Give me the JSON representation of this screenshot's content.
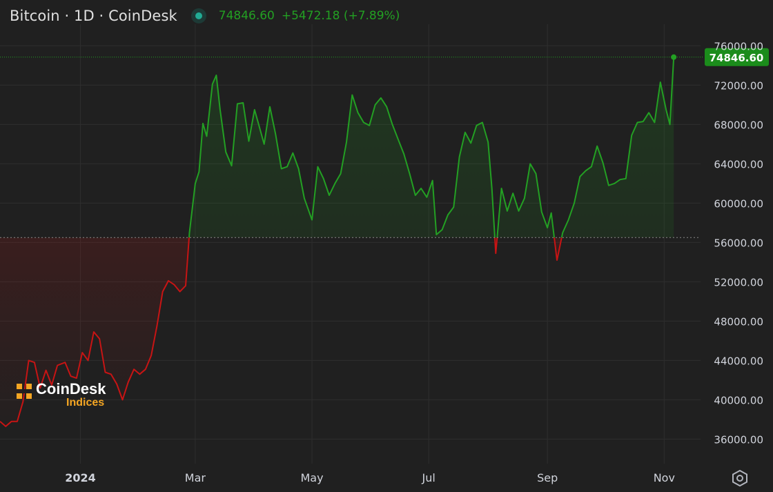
{
  "header": {
    "title": "Bitcoin · 1D · CoinDesk",
    "price": "74846.60",
    "change": "+5472.18 (+7.89%)"
  },
  "logo": {
    "name": "CoinDesk",
    "sub": "Indices"
  },
  "icons": {
    "status": "market-status-dot",
    "settings": "gear-icon",
    "logo": "coindesk-logo-icon"
  },
  "colors": {
    "background": "#202020",
    "grid": "#2e2e2e",
    "up": "#23a023",
    "down": "#c81414",
    "axis_text": "#d1d4dc",
    "last_price_label": "#1b8c1b"
  },
  "chart_data": {
    "type": "area",
    "title": "Bitcoin · 1D · CoinDesk",
    "baseline": 56500,
    "last_price": 74846.6,
    "last_price_label": "74846.60",
    "ylim": [
      33500,
      77500
    ],
    "xlim": [
      "2023-11-20",
      "2024-11-20"
    ],
    "grid": true,
    "yticks": [
      36000,
      40000,
      44000,
      48000,
      52000,
      56000,
      60000,
      64000,
      68000,
      72000,
      76000
    ],
    "ytick_labels": [
      "36000.00",
      "40000.00",
      "44000.00",
      "48000.00",
      "52000.00",
      "56000.00",
      "60000.00",
      "64000.00",
      "68000.00",
      "72000.00",
      "76000.00"
    ],
    "xticks": [
      {
        "date": "2024-01-01",
        "label": "2024",
        "bold": true
      },
      {
        "date": "2024-03-01",
        "label": "Mar"
      },
      {
        "date": "2024-05-01",
        "label": "May"
      },
      {
        "date": "2024-07-01",
        "label": "Jul"
      },
      {
        "date": "2024-09-01",
        "label": "Sep"
      },
      {
        "date": "2024-11-01",
        "label": "Nov"
      }
    ],
    "series": [
      {
        "x": [
          "2023-11-20",
          "2023-11-23",
          "2023-11-26",
          "2023-11-29",
          "2023-12-02",
          "2023-12-05",
          "2023-12-08",
          "2023-12-11",
          "2023-12-14",
          "2023-12-17",
          "2023-12-20",
          "2023-12-24",
          "2023-12-27",
          "2023-12-30",
          "2024-01-02",
          "2024-01-05",
          "2024-01-08",
          "2024-01-11",
          "2024-01-14",
          "2024-01-17",
          "2024-01-20",
          "2024-01-23",
          "2024-01-26",
          "2024-01-29",
          "2024-02-01",
          "2024-02-04",
          "2024-02-07",
          "2024-02-10",
          "2024-02-13",
          "2024-02-16",
          "2024-02-19",
          "2024-02-22",
          "2024-02-25",
          "2024-02-27",
          "2024-03-01",
          "2024-03-03",
          "2024-03-05",
          "2024-03-07",
          "2024-03-10",
          "2024-03-12",
          "2024-03-14",
          "2024-03-17",
          "2024-03-20",
          "2024-03-23",
          "2024-03-26",
          "2024-03-29",
          "2024-04-01",
          "2024-04-03",
          "2024-04-06",
          "2024-04-09",
          "2024-04-12",
          "2024-04-15",
          "2024-04-18",
          "2024-04-21",
          "2024-04-24",
          "2024-04-27",
          "2024-05-01",
          "2024-05-04",
          "2024-05-07",
          "2024-05-10",
          "2024-05-13",
          "2024-05-16",
          "2024-05-19",
          "2024-05-22",
          "2024-05-25",
          "2024-05-28",
          "2024-05-31",
          "2024-06-03",
          "2024-06-06",
          "2024-06-09",
          "2024-06-12",
          "2024-06-15",
          "2024-06-18",
          "2024-06-21",
          "2024-06-24",
          "2024-06-27",
          "2024-06-30",
          "2024-07-03",
          "2024-07-05",
          "2024-07-08",
          "2024-07-11",
          "2024-07-14",
          "2024-07-17",
          "2024-07-20",
          "2024-07-23",
          "2024-07-26",
          "2024-07-29",
          "2024-08-01",
          "2024-08-03",
          "2024-08-05",
          "2024-08-08",
          "2024-08-11",
          "2024-08-14",
          "2024-08-17",
          "2024-08-20",
          "2024-08-23",
          "2024-08-26",
          "2024-08-29",
          "2024-09-01",
          "2024-09-03",
          "2024-09-06",
          "2024-09-09",
          "2024-09-12",
          "2024-09-15",
          "2024-09-18",
          "2024-09-21",
          "2024-09-24",
          "2024-09-27",
          "2024-09-30",
          "2024-10-03",
          "2024-10-06",
          "2024-10-09",
          "2024-10-12",
          "2024-10-15",
          "2024-10-18",
          "2024-10-21",
          "2024-10-24",
          "2024-10-27",
          "2024-10-30",
          "2024-11-02",
          "2024-11-04",
          "2024-11-06"
        ],
        "y": [
          37800,
          37300,
          37800,
          37800,
          39800,
          44000,
          43800,
          41200,
          43000,
          41500,
          43500,
          43800,
          42400,
          42200,
          44800,
          44000,
          46900,
          46200,
          42800,
          42600,
          41600,
          40000,
          41800,
          43100,
          42600,
          43100,
          44500,
          47500,
          51000,
          52100,
          51700,
          51000,
          51600,
          57000,
          62000,
          63200,
          68100,
          66800,
          72100,
          73000,
          69500,
          65200,
          63800,
          70100,
          70200,
          66300,
          69500,
          68100,
          66000,
          69800,
          67000,
          63500,
          63700,
          65100,
          63500,
          60500,
          58300,
          63700,
          62500,
          60800,
          62000,
          63000,
          66200,
          71000,
          69200,
          68200,
          67900,
          70000,
          70700,
          69800,
          68000,
          66500,
          65000,
          63000,
          60800,
          61500,
          60600,
          62300,
          56800,
          57300,
          58800,
          59600,
          64700,
          67200,
          66100,
          67900,
          68200,
          66200,
          61500,
          54900,
          61500,
          59200,
          61000,
          59200,
          60500,
          64000,
          63000,
          59100,
          57500,
          59000,
          54200,
          57000,
          58300,
          60000,
          62700,
          63300,
          63700,
          65800,
          64100,
          61800,
          62000,
          62400,
          62500,
          66900,
          68200,
          68300,
          69200,
          68200,
          72300,
          69500,
          68000,
          74846.6
        ]
      }
    ]
  }
}
